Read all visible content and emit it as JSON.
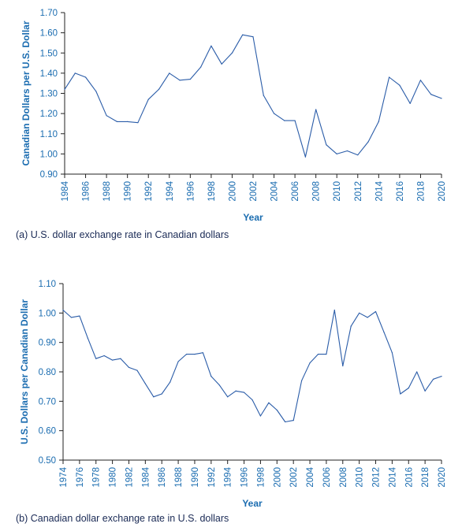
{
  "chart_data": [
    {
      "type": "line",
      "xlabel": "Year",
      "ylabel": "Canadian Dollars per U.S. Dollar",
      "caption": "(a) U.S. dollar exchange rate in Canadian dollars",
      "xlim": [
        1984,
        2020
      ],
      "ylim": [
        0.9,
        1.7
      ],
      "x_ticks": [
        "1984",
        "1986",
        "1988",
        "1990",
        "1992",
        "1994",
        "1996",
        "1998",
        "2000",
        "2002",
        "2004",
        "2006",
        "2008",
        "2010",
        "2012",
        "2014",
        "2016",
        "2018",
        "2020"
      ],
      "y_ticks": [
        "0.90",
        "1.00",
        "1.10",
        "1.20",
        "1.30",
        "1.40",
        "1.50",
        "1.60",
        "1.70"
      ],
      "grid": false,
      "line_color": "#2a5ca8",
      "x": [
        1984,
        1985,
        1986,
        1987,
        1988,
        1989,
        1990,
        1991,
        1992,
        1993,
        1994,
        1995,
        1996,
        1997,
        1998,
        1999,
        2000,
        2001,
        2002,
        2003,
        2004,
        2005,
        2006,
        2007,
        2008,
        2009,
        2010,
        2011,
        2012,
        2013,
        2014,
        2015,
        2016,
        2017,
        2018,
        2019,
        2020
      ],
      "y": [
        1.32,
        1.4,
        1.38,
        1.31,
        1.19,
        1.16,
        1.16,
        1.155,
        1.27,
        1.32,
        1.4,
        1.365,
        1.37,
        1.43,
        1.535,
        1.445,
        1.5,
        1.59,
        1.58,
        1.29,
        1.2,
        1.165,
        1.165,
        0.985,
        1.22,
        1.045,
        1.0,
        1.015,
        0.995,
        1.06,
        1.16,
        1.38,
        1.34,
        1.25,
        1.365,
        1.295,
        1.275
      ]
    },
    {
      "type": "line",
      "xlabel": "Year",
      "ylabel": "U.S. Dollars per Canadian Dollar",
      "caption": "(b) Canadian dollar exchange rate in U.S. dollars",
      "xlim": [
        1974,
        2020
      ],
      "ylim": [
        0.5,
        1.1
      ],
      "x_ticks": [
        "1974",
        "1976",
        "1978",
        "1980",
        "1982",
        "1984",
        "1986",
        "1988",
        "1990",
        "1992",
        "1994",
        "1996",
        "1998",
        "2000",
        "2002",
        "2004",
        "2006",
        "2008",
        "2010",
        "2012",
        "2014",
        "2016",
        "2018",
        "2020"
      ],
      "y_ticks": [
        "0.50",
        "0.60",
        "0.70",
        "0.80",
        "0.90",
        "1.00",
        "1.10"
      ],
      "grid": false,
      "line_color": "#2a5ca8",
      "x": [
        1974,
        1975,
        1976,
        1977,
        1978,
        1979,
        1980,
        1981,
        1982,
        1983,
        1984,
        1985,
        1986,
        1987,
        1988,
        1989,
        1990,
        1991,
        1992,
        1993,
        1994,
        1995,
        1996,
        1997,
        1998,
        1999,
        2000,
        2001,
        2002,
        2003,
        2004,
        2005,
        2006,
        2007,
        2008,
        2009,
        2010,
        2011,
        2012,
        2013,
        2014,
        2015,
        2016,
        2017,
        2018,
        2019,
        2020
      ],
      "y": [
        1.01,
        0.985,
        0.99,
        0.915,
        0.845,
        0.855,
        0.84,
        0.845,
        0.815,
        0.805,
        0.76,
        0.715,
        0.725,
        0.765,
        0.835,
        0.86,
        0.86,
        0.865,
        0.785,
        0.755,
        0.715,
        0.735,
        0.73,
        0.705,
        0.65,
        0.695,
        0.67,
        0.63,
        0.635,
        0.77,
        0.83,
        0.86,
        0.86,
        1.01,
        0.82,
        0.955,
        1.0,
        0.985,
        1.005,
        0.935,
        0.865,
        0.725,
        0.745,
        0.8,
        0.735,
        0.775,
        0.785
      ]
    }
  ]
}
